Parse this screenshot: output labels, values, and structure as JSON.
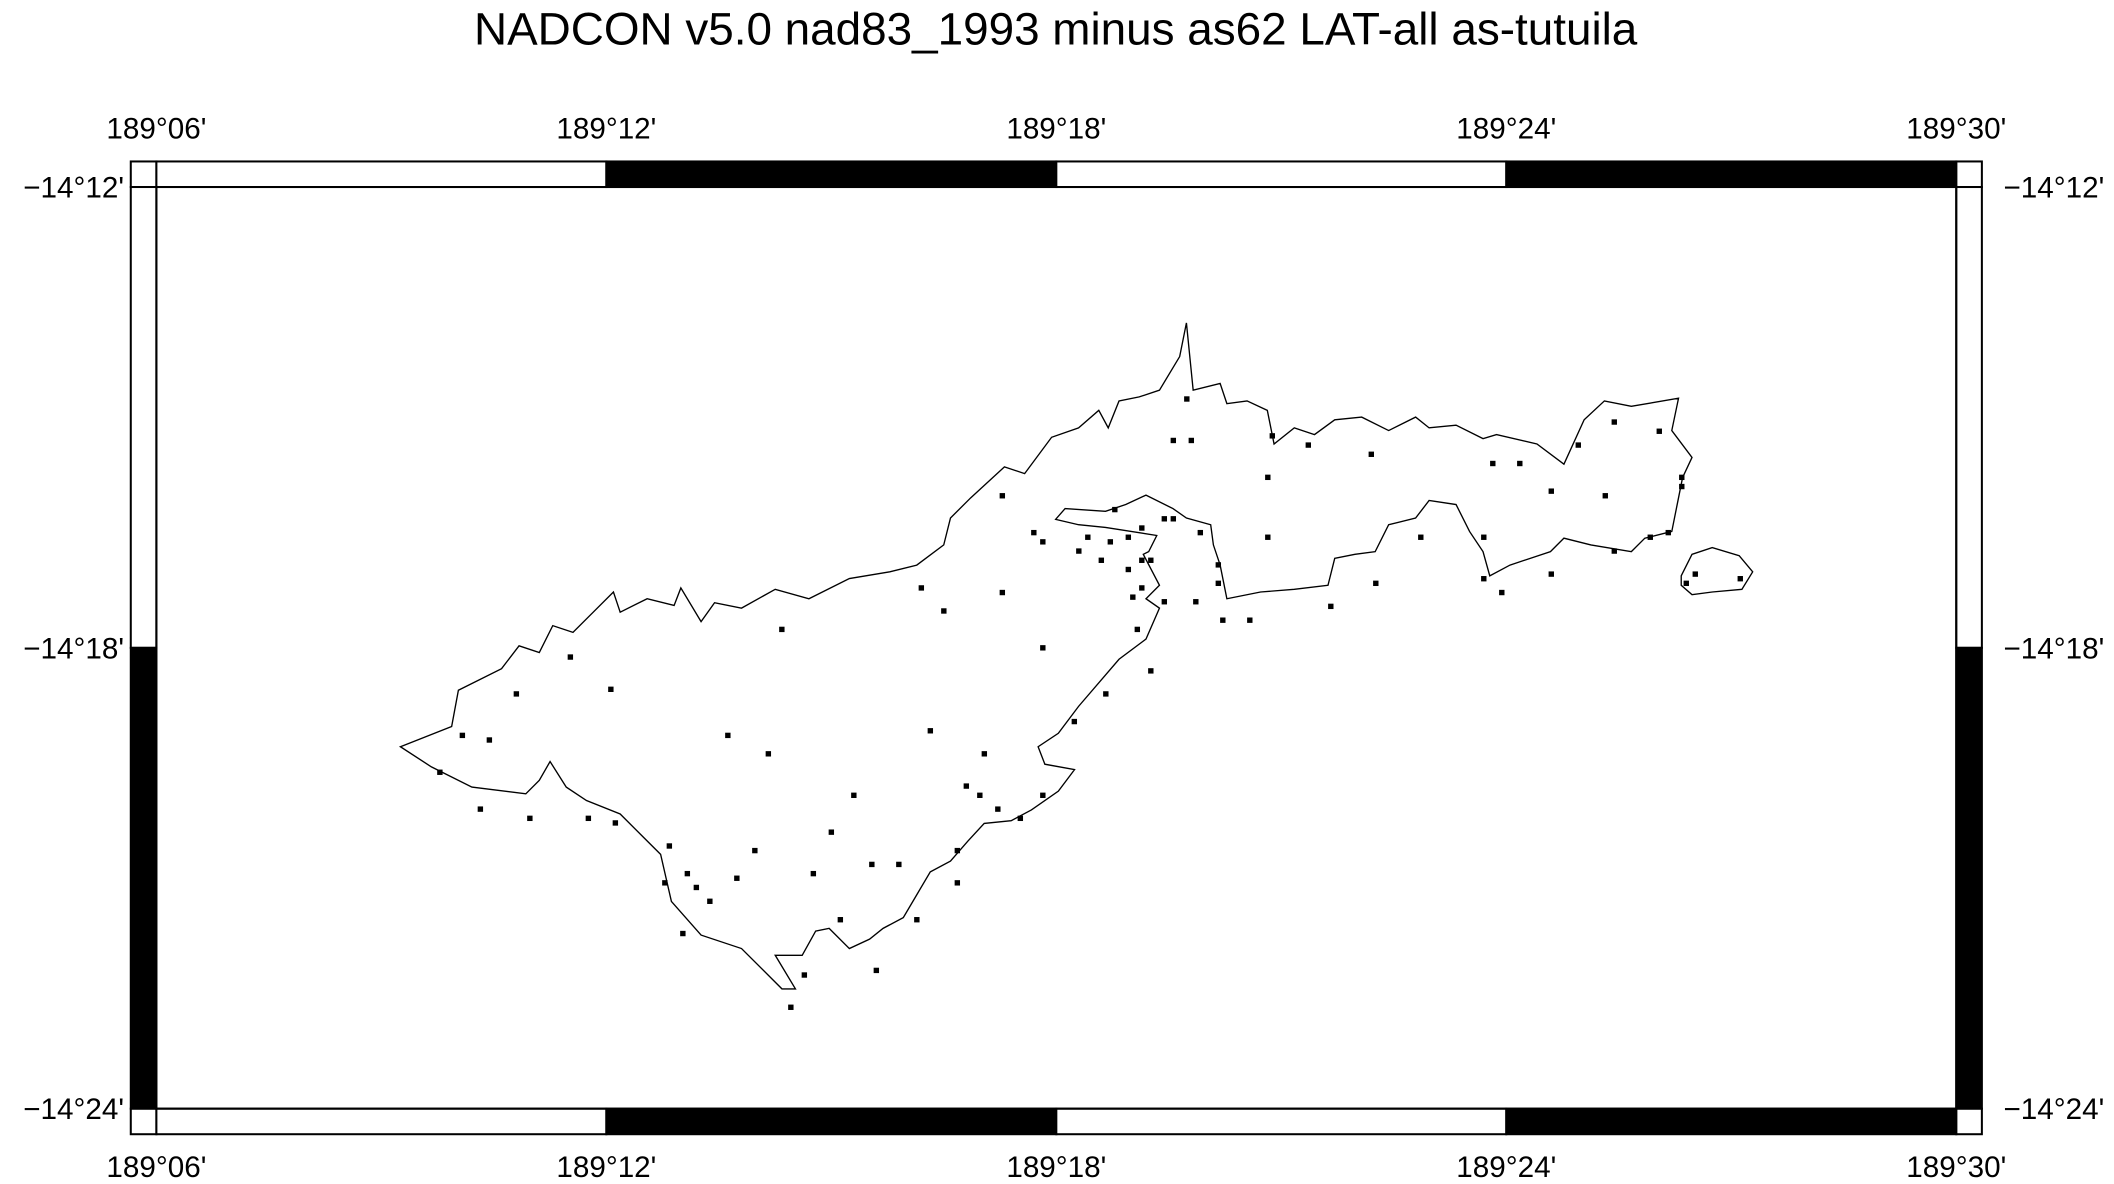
{
  "title": "NADCON v5.0 nad83_1993 minus as62 LAT-all  as-tutuila",
  "map": {
    "xlim": [
      189.1,
      189.5
    ],
    "ylim": [
      -14.4,
      -14.2
    ],
    "xticks": [
      {
        "value": 189.1,
        "label": "189°06'"
      },
      {
        "value": 189.2,
        "label": "189°12'"
      },
      {
        "value": 189.3,
        "label": "189°18'"
      },
      {
        "value": 189.4,
        "label": "189°24'"
      },
      {
        "value": 189.5,
        "label": "189°30'"
      }
    ],
    "yticks": [
      {
        "value": -14.2,
        "label": "−14°12'"
      },
      {
        "value": -14.3,
        "label": "−14°18'"
      },
      {
        "value": -14.4,
        "label": "−14°24'"
      }
    ],
    "stations": {
      "lon": [
        189.329,
        189.326,
        189.33,
        189.348,
        189.356,
        189.37,
        189.397,
        189.403,
        189.416,
        189.424,
        189.434,
        189.439,
        189.439,
        189.41,
        189.422,
        189.347,
        189.288,
        189.313,
        189.324,
        189.326,
        189.332,
        189.347,
        189.381,
        189.395,
        189.424,
        189.432,
        189.436,
        189.295,
        189.297,
        189.305,
        189.307,
        189.312,
        189.316,
        189.319,
        189.31,
        189.316,
        189.319,
        189.321,
        189.336,
        189.41,
        189.395,
        189.399,
        189.371,
        189.361,
        189.336,
        189.319,
        189.317,
        189.324,
        189.331,
        189.337,
        189.343,
        189.318,
        189.27,
        189.275,
        189.288,
        189.239,
        189.297,
        189.321,
        189.311,
        189.304,
        189.192,
        189.201,
        189.18,
        189.168,
        189.174,
        189.163,
        189.172,
        189.183,
        189.196,
        189.202,
        189.227,
        189.236,
        189.272,
        189.284,
        189.28,
        189.283,
        189.287,
        189.292,
        189.297,
        189.255,
        189.25,
        189.233,
        189.229,
        189.246,
        189.259,
        189.265,
        189.278,
        189.278,
        189.214,
        189.213,
        189.218,
        189.22,
        189.223,
        189.217,
        189.252,
        189.269,
        189.26,
        189.244,
        189.241,
        189.44,
        189.442,
        189.452
      ],
      "lat": [
        -14.246,
        -14.255,
        -14.255,
        -14.254,
        -14.256,
        -14.258,
        -14.26,
        -14.26,
        -14.256,
        -14.251,
        -14.253,
        -14.263,
        -14.265,
        -14.266,
        -14.267,
        -14.263,
        -14.267,
        -14.27,
        -14.272,
        -14.272,
        -14.275,
        -14.276,
        -14.276,
        -14.276,
        -14.279,
        -14.276,
        -14.275,
        -14.275,
        -14.277,
        -14.279,
        -14.276,
        -14.277,
        -14.276,
        -14.274,
        -14.281,
        -14.283,
        -14.281,
        -14.281,
        -14.282,
        -14.284,
        -14.285,
        -14.288,
        -14.286,
        -14.291,
        -14.286,
        -14.287,
        -14.289,
        -14.29,
        -14.29,
        -14.294,
        -14.294,
        -14.296,
        -14.287,
        -14.292,
        -14.288,
        -14.296,
        -14.3,
        -14.305,
        -14.31,
        -14.316,
        -14.302,
        -14.309,
        -14.31,
        -14.319,
        -14.32,
        -14.327,
        -14.335,
        -14.337,
        -14.337,
        -14.338,
        -14.319,
        -14.323,
        -14.318,
        -14.323,
        -14.33,
        -14.332,
        -14.335,
        -14.337,
        -14.332,
        -14.332,
        -14.34,
        -14.344,
        -14.35,
        -14.349,
        -14.347,
        -14.347,
        -14.344,
        -14.351,
        -14.343,
        -14.351,
        -14.349,
        -14.352,
        -14.355,
        -14.362,
        -14.359,
        -14.359,
        -14.37,
        -14.371,
        -14.378,
        -14.286,
        -14.284,
        -14.285
      ]
    }
  }
}
